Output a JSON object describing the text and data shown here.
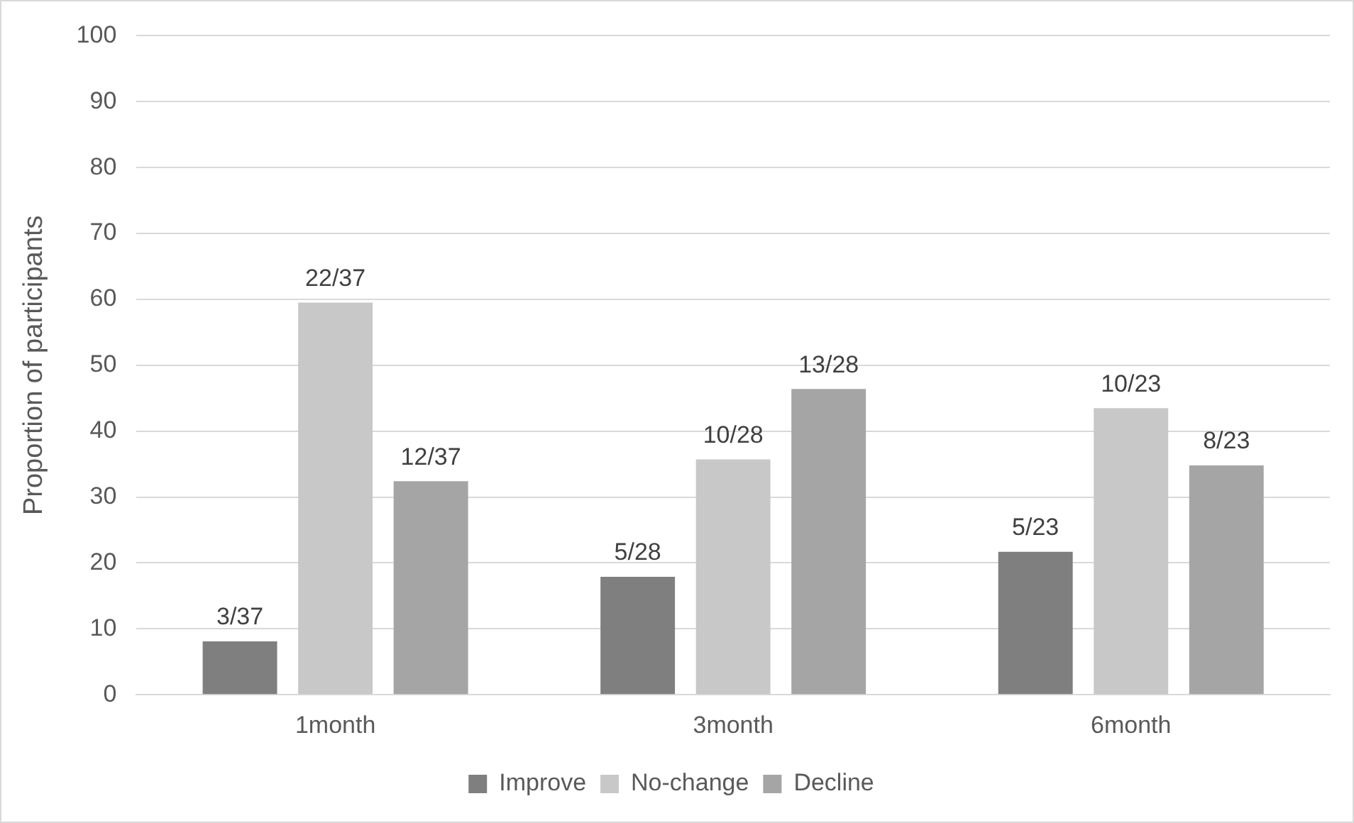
{
  "chart_data": {
    "type": "bar",
    "ylabel": "Proportion of participants",
    "categories": [
      "1month",
      "3month",
      "6month"
    ],
    "series": [
      {
        "name": "Improve",
        "color": "#7f7f7f",
        "values": [
          8.1,
          17.9,
          21.7
        ],
        "value_labels": [
          "3/37",
          "5/28",
          "5/23"
        ]
      },
      {
        "name": "No-change",
        "color": "#c8c8c8",
        "values": [
          59.5,
          35.7,
          43.5
        ],
        "value_labels": [
          "22/37",
          "10/28",
          "10/23"
        ]
      },
      {
        "name": "Decline",
        "color": "#a5a5a5",
        "values": [
          32.4,
          46.4,
          34.8
        ],
        "value_labels": [
          "12/37",
          "13/28",
          "8/23"
        ]
      }
    ],
    "ylim": [
      0,
      100
    ],
    "yticks": [
      0,
      10,
      20,
      30,
      40,
      50,
      60,
      70,
      80,
      90,
      100
    ],
    "grid": "y",
    "legend": "bottom"
  }
}
